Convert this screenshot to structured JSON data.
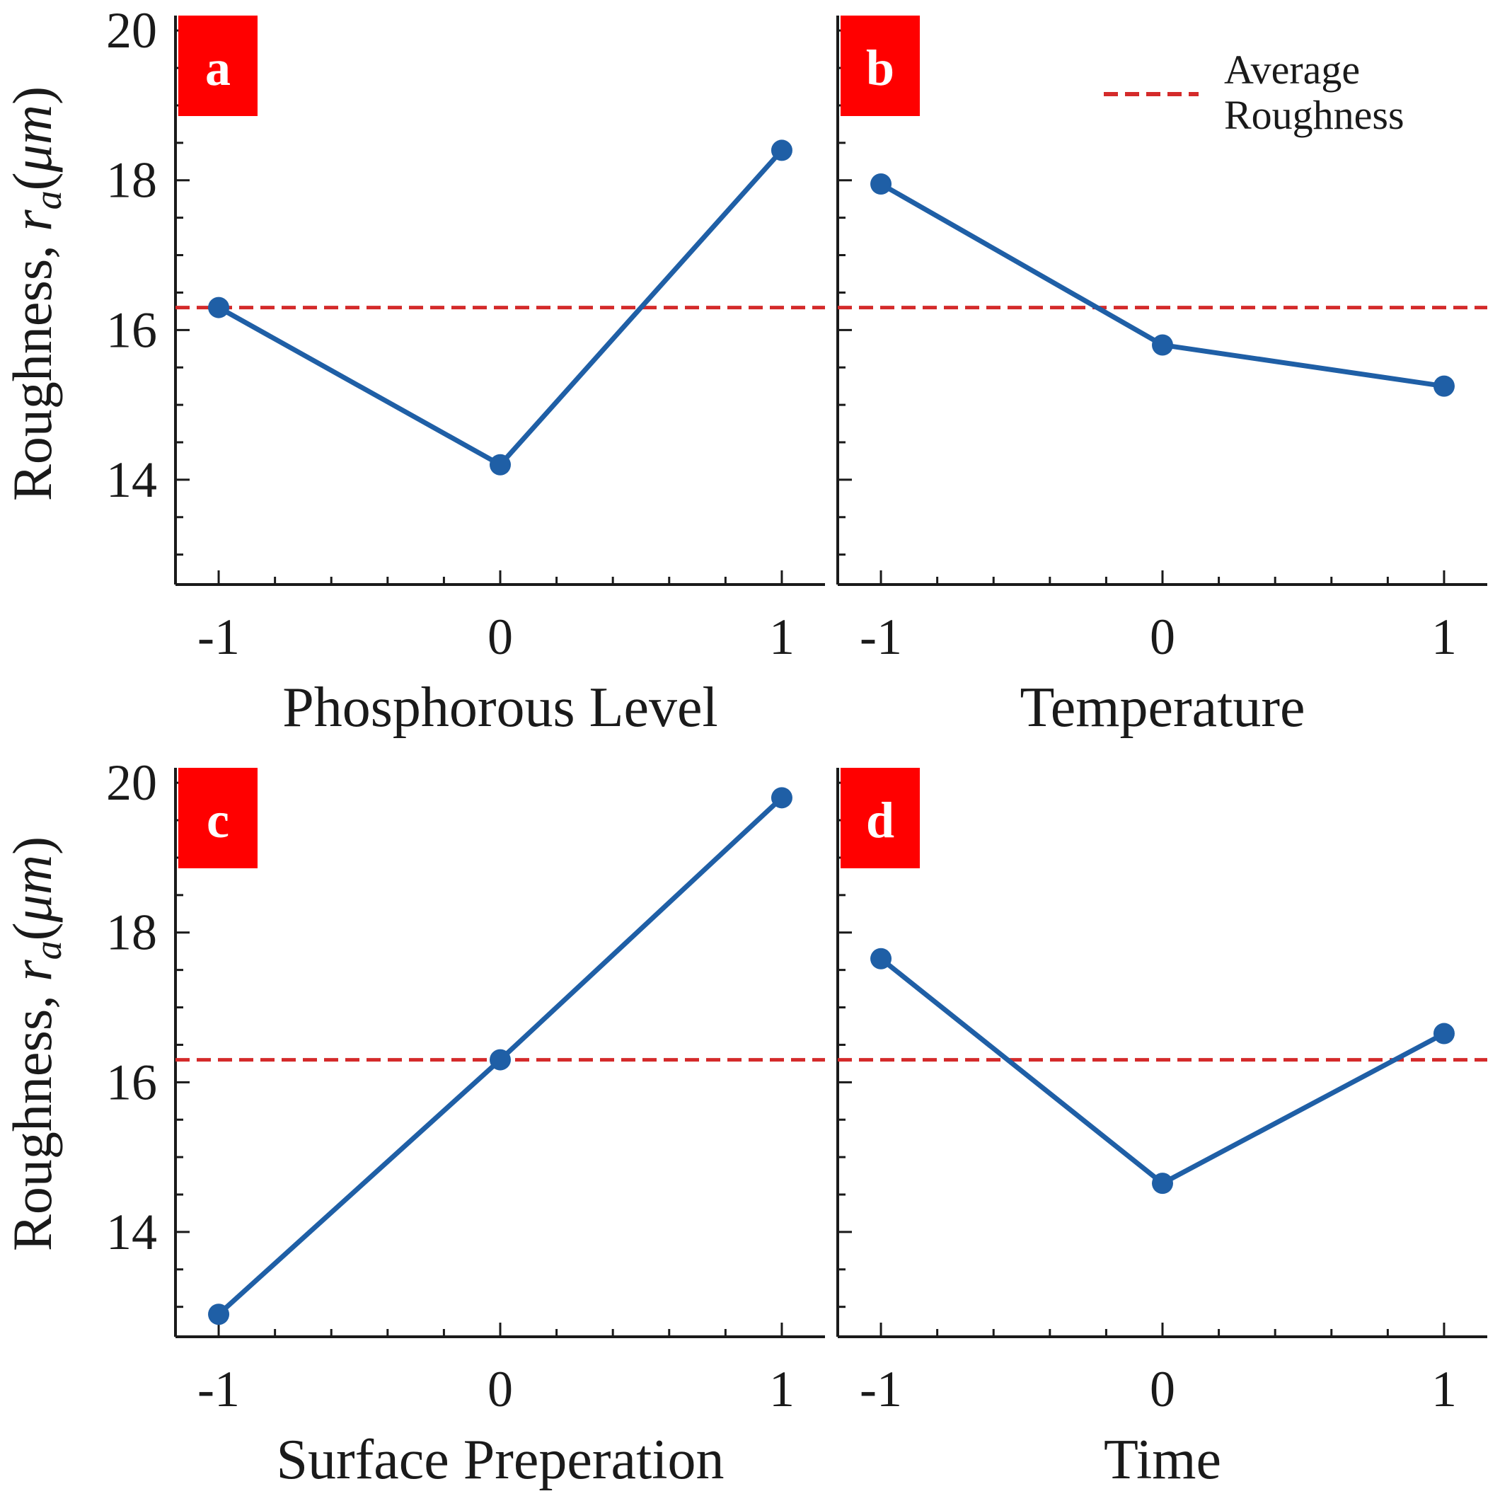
{
  "figure": {
    "ylabel": {
      "prefix": "Roughness, ",
      "var": "r",
      "sub": "a",
      "unit_open": "(",
      "unit_mu": "μ",
      "unit_m": "m",
      "unit_close": ")"
    },
    "legend": {
      "line1": "Average",
      "line2": "Roughness"
    }
  },
  "chart_data": [
    {
      "type": "line",
      "panel": "a",
      "xlabel": "Phosphorous Level",
      "ylabel": "Roughness, ra(μm)",
      "x": [
        -1,
        0,
        1
      ],
      "x_tick_labels": [
        "-1",
        "0",
        "1"
      ],
      "series": [
        {
          "name": "Roughness",
          "values": [
            16.3,
            14.2,
            18.4
          ]
        }
      ],
      "reference_line": {
        "name": "Average Roughness",
        "value": 16.3
      },
      "ylim": [
        12.6,
        20.2
      ],
      "yticks": [
        14,
        16,
        18,
        20
      ],
      "y_tick_labels": [
        "14",
        "16",
        "18",
        "20"
      ],
      "colors": {
        "line": "#1f5fa6",
        "average": "#d42a2a",
        "badge": "#ff0000"
      }
    },
    {
      "type": "line",
      "panel": "b",
      "xlabel": "Temperature",
      "ylabel": "",
      "x": [
        -1,
        0,
        1
      ],
      "x_tick_labels": [
        "-1",
        "0",
        "1"
      ],
      "series": [
        {
          "name": "Roughness",
          "values": [
            17.95,
            15.8,
            15.25
          ]
        }
      ],
      "reference_line": {
        "name": "Average Roughness",
        "value": 16.3
      },
      "ylim": [
        12.6,
        20.2
      ],
      "yticks": [
        14,
        16,
        18,
        20
      ],
      "y_tick_labels": [],
      "colors": {
        "line": "#1f5fa6",
        "average": "#d42a2a",
        "badge": "#ff0000"
      }
    },
    {
      "type": "line",
      "panel": "c",
      "xlabel": "Surface Preperation",
      "ylabel": "Roughness, ra(μm)",
      "x": [
        -1,
        0,
        1
      ],
      "x_tick_labels": [
        "-1",
        "0",
        "1"
      ],
      "series": [
        {
          "name": "Roughness",
          "values": [
            12.9,
            16.3,
            19.8
          ]
        }
      ],
      "reference_line": {
        "name": "Average Roughness",
        "value": 16.3
      },
      "ylim": [
        12.6,
        20.2
      ],
      "yticks": [
        14,
        16,
        18,
        20
      ],
      "y_tick_labels": [
        "14",
        "16",
        "18",
        "20"
      ],
      "colors": {
        "line": "#1f5fa6",
        "average": "#d42a2a",
        "badge": "#ff0000"
      }
    },
    {
      "type": "line",
      "panel": "d",
      "xlabel": "Time",
      "ylabel": "",
      "x": [
        -1,
        0,
        1
      ],
      "x_tick_labels": [
        "-1",
        "0",
        "1"
      ],
      "series": [
        {
          "name": "Roughness",
          "values": [
            17.65,
            14.65,
            16.65
          ]
        }
      ],
      "reference_line": {
        "name": "Average Roughness",
        "value": 16.3
      },
      "ylim": [
        12.6,
        20.2
      ],
      "yticks": [
        14,
        16,
        18,
        20
      ],
      "y_tick_labels": [],
      "colors": {
        "line": "#1f5fa6",
        "average": "#d42a2a",
        "badge": "#ff0000"
      }
    }
  ]
}
